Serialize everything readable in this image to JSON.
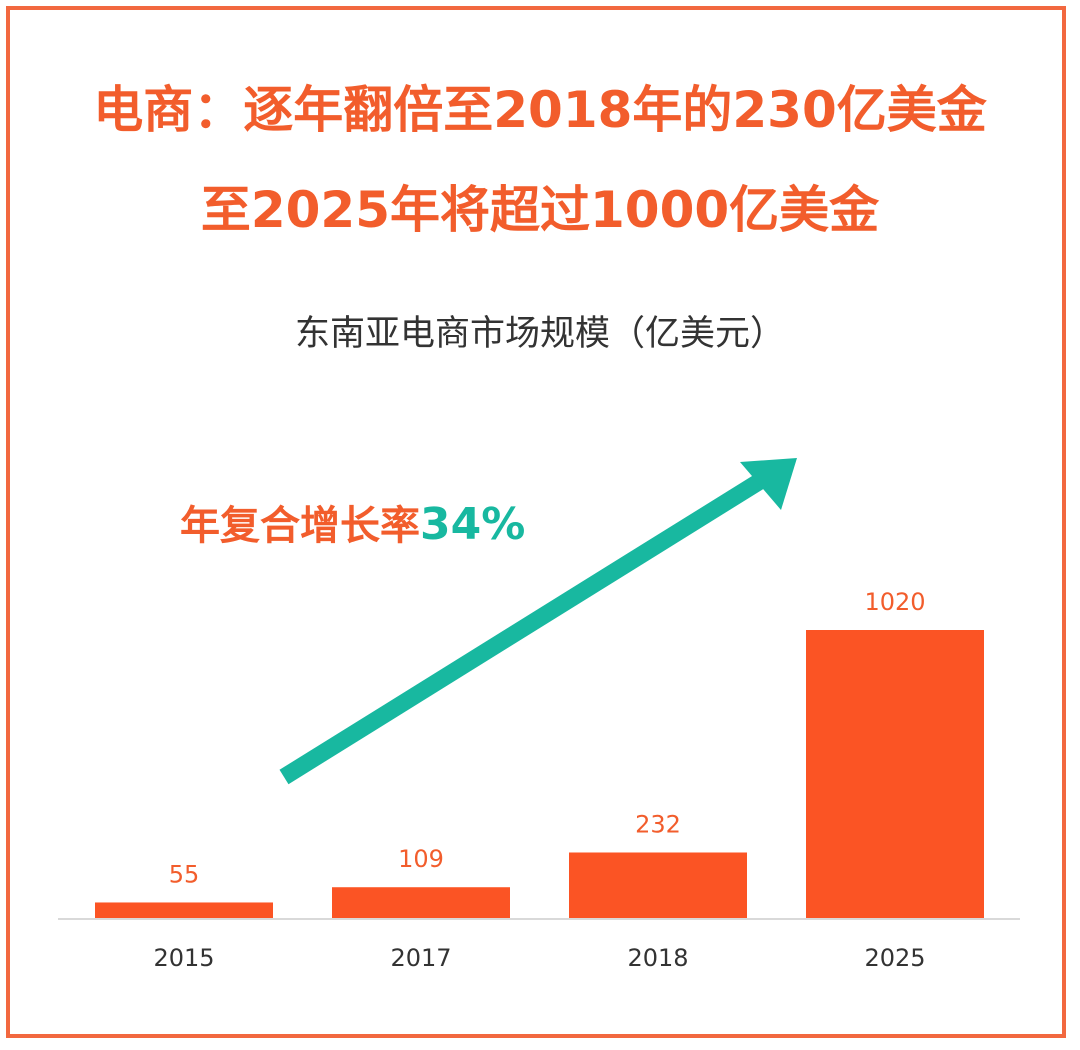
{
  "header": {
    "line1": "电商：逐年翻倍至2018年的230亿美金",
    "line2": "至2025年将超过1000亿美金"
  },
  "annotation": {
    "cagr_label": "年复合增长率",
    "cagr_value": "34%"
  },
  "colors": {
    "accent": "#f25d2c",
    "bar": "#fb5424",
    "arrow": "#18b8a0",
    "frame": "#f2683f"
  },
  "chart_data": {
    "type": "bar",
    "title": "东南亚电商市场规模（亿美元）",
    "categories": [
      "2015",
      "2017",
      "2018",
      "2025"
    ],
    "values": [
      55,
      109,
      232,
      1020
    ],
    "xlabel": "",
    "ylabel": "",
    "ylim": [
      0,
      1020
    ],
    "grid": false,
    "legend": "none"
  }
}
